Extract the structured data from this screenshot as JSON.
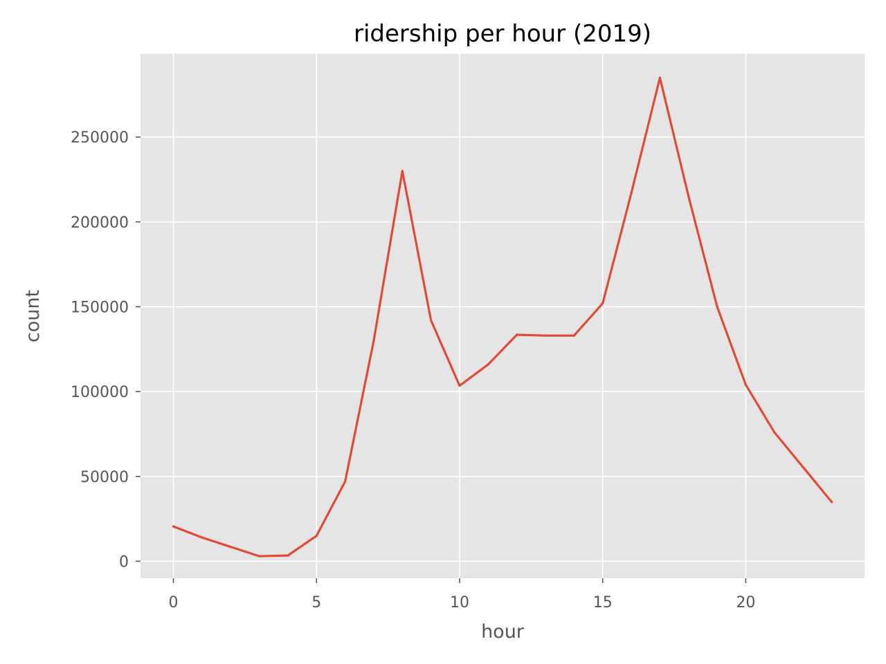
{
  "chart_data": {
    "type": "line",
    "title": "ridership per hour (2019)",
    "xlabel": "hour",
    "ylabel": "count",
    "xlim": [
      -1.15,
      24.15
    ],
    "ylim": [
      -10000,
      299000
    ],
    "xticks": [
      0,
      5,
      10,
      15,
      20
    ],
    "yticks": [
      0,
      50000,
      100000,
      150000,
      200000,
      250000
    ],
    "grid": true,
    "style": "ggplot",
    "colors": {
      "plot_background": "#e5e5e5",
      "grid": "#ffffff",
      "line": "#e24a33",
      "tick_text": "#555555",
      "title_text": "#000000"
    },
    "x": [
      0,
      1,
      2,
      3,
      4,
      5,
      6,
      7,
      8,
      9,
      10,
      11,
      12,
      13,
      14,
      15,
      16,
      17,
      18,
      19,
      20,
      21,
      22,
      23
    ],
    "series": [
      {
        "values": [
          20500,
          14000,
          8500,
          3000,
          3400,
          15000,
          47000,
          130000,
          230000,
          142000,
          103500,
          116000,
          133500,
          133000,
          133000,
          152000,
          217000,
          285000,
          215000,
          150000,
          104000,
          76000,
          55500,
          35000
        ]
      }
    ]
  }
}
